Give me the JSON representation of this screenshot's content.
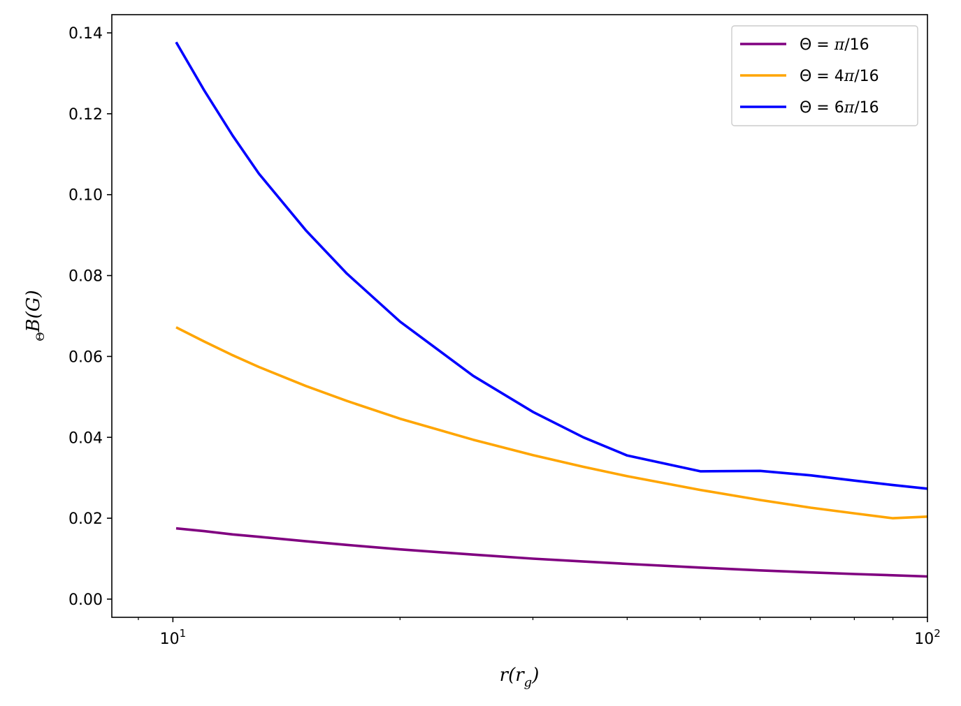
{
  "chart_data": {
    "type": "line",
    "xscale": "log",
    "xlim": [
      8.3,
      100
    ],
    "ylim": [
      -0.0045,
      0.1445
    ],
    "x_ticks_major": [
      {
        "value": 10,
        "base": "10",
        "exp": "1"
      },
      {
        "value": 100,
        "base": "10",
        "exp": "2"
      }
    ],
    "x_ticks_minor": [
      9,
      20,
      30,
      40,
      50,
      60,
      70,
      80,
      90
    ],
    "y_ticks": [
      {
        "value": 0.0,
        "label": "0.00"
      },
      {
        "value": 0.02,
        "label": "0.02"
      },
      {
        "value": 0.04,
        "label": "0.04"
      },
      {
        "value": 0.06,
        "label": "0.06"
      },
      {
        "value": 0.08,
        "label": "0.08"
      },
      {
        "value": 0.1,
        "label": "0.10"
      },
      {
        "value": 0.12,
        "label": "0.12"
      },
      {
        "value": 0.14,
        "label": "0.14"
      }
    ],
    "xlabel": {
      "main": "r(r",
      "sub": "g",
      "close": ")"
    },
    "ylabel": {
      "sub": "Θ",
      "main": "B(G)"
    },
    "legend_position": "upper-right",
    "x": [
      10.1,
      11,
      12,
      13,
      15,
      17,
      20,
      25,
      30,
      35,
      40,
      50,
      60,
      70,
      80,
      90,
      100
    ],
    "series": [
      {
        "name": "Θ = π/16",
        "color": "#800080",
        "values": [
          0.0175,
          0.0168,
          0.016,
          0.0154,
          0.0143,
          0.0134,
          0.0123,
          0.011,
          0.01,
          0.0093,
          0.0087,
          0.0078,
          0.0071,
          0.0066,
          0.0062,
          0.0059,
          0.0056
        ]
      },
      {
        "name": "Θ = 4π/16",
        "color": "#FFA500",
        "values": [
          0.0672,
          0.0637,
          0.0603,
          0.0574,
          0.0527,
          0.049,
          0.0446,
          0.0394,
          0.0356,
          0.0327,
          0.0304,
          0.027,
          0.0245,
          0.0226,
          0.0212,
          0.02,
          0.0204
        ]
      },
      {
        "name": "Θ = 6π/16",
        "color": "#0000FF",
        "values": [
          0.1377,
          0.1258,
          0.1146,
          0.1052,
          0.0912,
          0.0805,
          0.0686,
          0.0552,
          0.0463,
          0.04,
          0.0355,
          0.0316,
          0.0317,
          0.0306,
          0.0293,
          0.0282,
          0.0273
        ]
      }
    ],
    "legend": [
      {
        "pre": "Θ = ",
        "pi": "π",
        "post": "/16"
      },
      {
        "pre": "Θ = 4",
        "pi": "π",
        "post": "/16"
      },
      {
        "pre": "Θ = 6",
        "pi": "π",
        "post": "/16"
      }
    ]
  }
}
